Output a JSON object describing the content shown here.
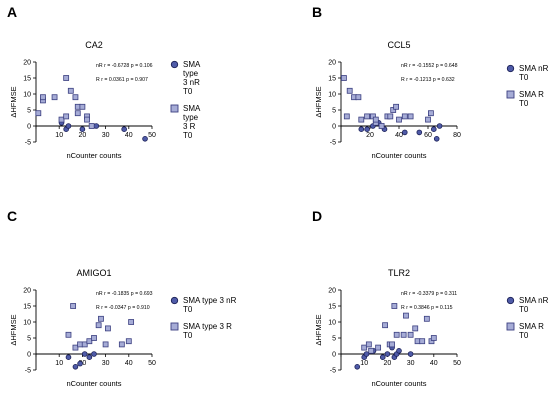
{
  "panels": [
    {
      "letter": "A",
      "chart": {
        "type": "scatter",
        "title": "CA2",
        "xlabel": "nCounter counts",
        "ylabel": "ΔHFMSE",
        "xlim": [
          0,
          50
        ],
        "ylim": [
          -5,
          20
        ],
        "xticks": [
          0,
          10,
          20,
          30,
          40,
          50
        ],
        "yticks": [
          -5,
          0,
          5,
          10,
          15,
          20
        ],
        "stats": [
          "nR r = -0.6728  p = 0.106",
          "R  r = 0.0361  p = 0.907"
        ],
        "series": [
          {
            "name": "SMA type 3 nR T0",
            "marker": "circle",
            "points": [
              [
                13,
                -1
              ],
              [
                11,
                1
              ],
              [
                14,
                0
              ],
              [
                20,
                -1
              ],
              [
                26,
                0
              ],
              [
                38,
                -1
              ],
              [
                47,
                -4
              ]
            ]
          },
          {
            "name": "SMA type 3 R T0",
            "marker": "square",
            "points": [
              [
                1,
                4
              ],
              [
                3,
                8
              ],
              [
                3,
                9
              ],
              [
                8,
                9
              ],
              [
                11,
                2
              ],
              [
                13,
                3
              ],
              [
                13,
                15
              ],
              [
                15,
                11
              ],
              [
                17,
                9
              ],
              [
                18,
                4
              ],
              [
                18,
                6
              ],
              [
                20,
                6
              ],
              [
                22,
                3
              ],
              [
                22,
                2
              ],
              [
                24,
                0
              ]
            ]
          }
        ]
      }
    },
    {
      "letter": "B",
      "chart": {
        "type": "scatter",
        "title": "CCL5",
        "xlabel": "nCounter counts",
        "ylabel": "ΔHFMSE",
        "xlim": [
          0,
          80
        ],
        "ylim": [
          -5,
          20
        ],
        "xticks": [
          0,
          20,
          40,
          60,
          80
        ],
        "yticks": [
          -5,
          0,
          5,
          10,
          15,
          20
        ],
        "stats": [
          "nR r = -0.1552  p = 0.648",
          "R  r = -0.1213  p = 0.632"
        ],
        "series": [
          {
            "name": "SMA nR T0",
            "marker": "circle",
            "points": [
              [
                14,
                -1
              ],
              [
                18,
                -1
              ],
              [
                22,
                0
              ],
              [
                26,
                1
              ],
              [
                30,
                -1
              ],
              [
                44,
                -2
              ],
              [
                54,
                -2
              ],
              [
                64,
                -1
              ],
              [
                66,
                -4
              ],
              [
                68,
                0
              ]
            ]
          },
          {
            "name": "SMA R T0",
            "marker": "square",
            "points": [
              [
                2,
                15
              ],
              [
                4,
                3
              ],
              [
                6,
                11
              ],
              [
                9,
                9
              ],
              [
                12,
                9
              ],
              [
                14,
                2
              ],
              [
                18,
                3
              ],
              [
                22,
                3
              ],
              [
                24,
                1
              ],
              [
                24,
                2
              ],
              [
                28,
                0
              ],
              [
                32,
                3
              ],
              [
                34,
                3
              ],
              [
                36,
                5
              ],
              [
                38,
                6
              ],
              [
                40,
                2
              ],
              [
                44,
                3
              ],
              [
                48,
                3
              ],
              [
                60,
                2
              ],
              [
                62,
                4
              ]
            ]
          }
        ]
      }
    },
    {
      "letter": "C",
      "chart": {
        "type": "scatter",
        "title": "AMIGO1",
        "xlabel": "nCounter counts",
        "ylabel": "ΔHFMSE",
        "xlim": [
          0,
          50
        ],
        "ylim": [
          -5,
          20
        ],
        "xticks": [
          0,
          10,
          20,
          30,
          40,
          50
        ],
        "yticks": [
          -5,
          0,
          5,
          10,
          15,
          20
        ],
        "stats": [
          "nR r = -0.1835  p = 0.693",
          "R  r = -0.0347  p = 0.910"
        ],
        "series": [
          {
            "name": "SMA type 3 nR T0",
            "marker": "circle",
            "points": [
              [
                14,
                -1
              ],
              [
                17,
                -4
              ],
              [
                19,
                -3
              ],
              [
                21,
                0
              ],
              [
                23,
                -1
              ],
              [
                25,
                0
              ]
            ]
          },
          {
            "name": "SMA type 3 R T0",
            "marker": "square",
            "points": [
              [
                14,
                6
              ],
              [
                16,
                15
              ],
              [
                17,
                2
              ],
              [
                19,
                3
              ],
              [
                21,
                3
              ],
              [
                23,
                4
              ],
              [
                25,
                5
              ],
              [
                27,
                9
              ],
              [
                28,
                11
              ],
              [
                30,
                3
              ],
              [
                31,
                8
              ],
              [
                37,
                3
              ],
              [
                40,
                4
              ],
              [
                41,
                10
              ]
            ]
          }
        ]
      }
    },
    {
      "letter": "D",
      "chart": {
        "type": "scatter",
        "title": "TLR2",
        "xlabel": "nCounter counts",
        "ylabel": "ΔHFMSE",
        "xlim": [
          0,
          50
        ],
        "ylim": [
          -5,
          20
        ],
        "xticks": [
          0,
          10,
          20,
          30,
          40,
          50
        ],
        "yticks": [
          -5,
          0,
          5,
          10,
          15,
          20
        ],
        "stats": [
          "nR r = -0.3379  p = 0.311",
          "R  r = 0.3846  p = 0.115"
        ],
        "series": [
          {
            "name": "SMA nR T0",
            "marker": "circle",
            "points": [
              [
                7,
                -4
              ],
              [
                10,
                -1
              ],
              [
                11,
                0
              ],
              [
                14,
                1
              ],
              [
                18,
                -1
              ],
              [
                20,
                0
              ],
              [
                22,
                2
              ],
              [
                23,
                -1
              ],
              [
                24,
                0
              ],
              [
                25,
                1
              ],
              [
                30,
                0
              ]
            ]
          },
          {
            "name": "SMA R T0",
            "marker": "square",
            "points": [
              [
                10,
                2
              ],
              [
                12,
                3
              ],
              [
                13,
                1
              ],
              [
                16,
                2
              ],
              [
                19,
                9
              ],
              [
                21,
                3
              ],
              [
                22,
                3
              ],
              [
                23,
                15
              ],
              [
                24,
                6
              ],
              [
                27,
                6
              ],
              [
                28,
                12
              ],
              [
                30,
                6
              ],
              [
                32,
                8
              ],
              [
                33,
                4
              ],
              [
                35,
                4
              ],
              [
                37,
                11
              ],
              [
                39,
                4
              ],
              [
                40,
                5
              ]
            ]
          }
        ]
      }
    }
  ]
}
